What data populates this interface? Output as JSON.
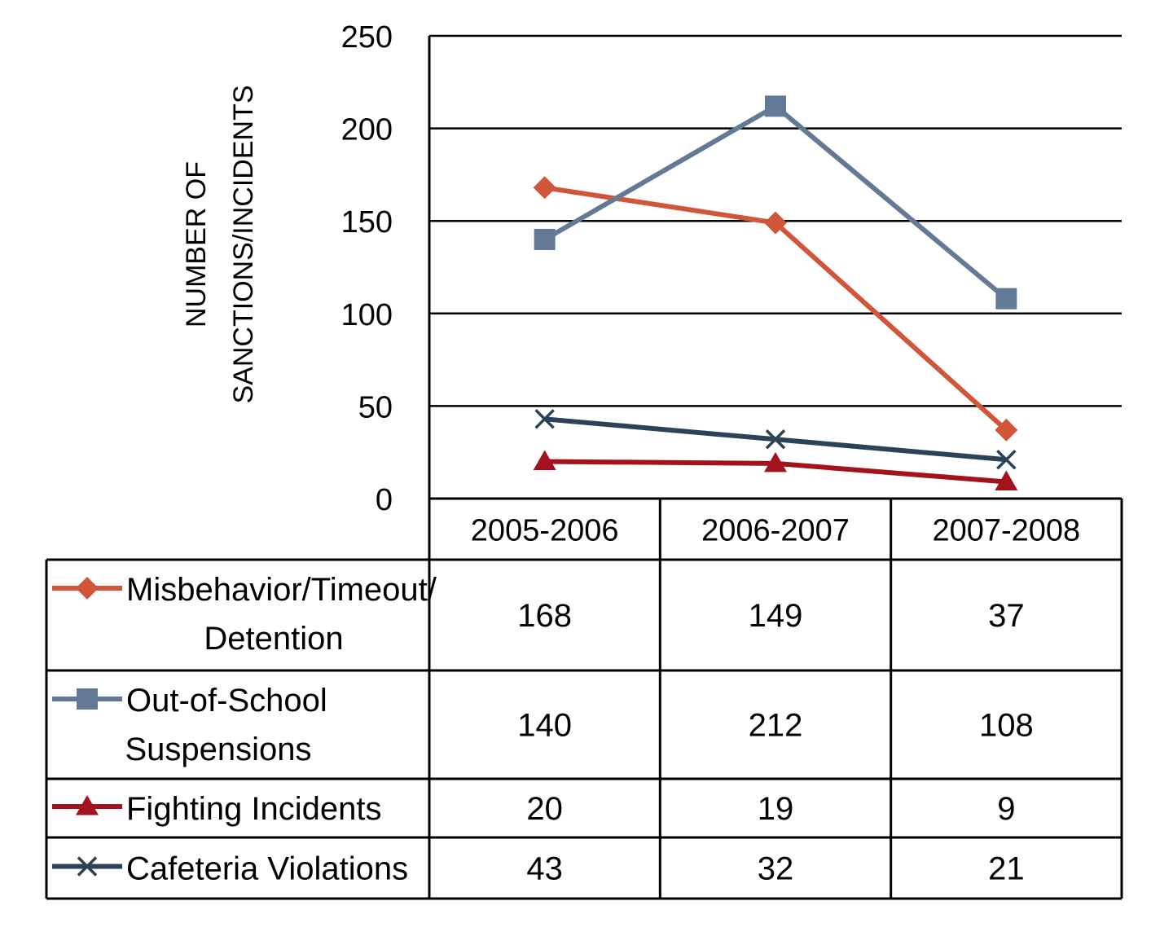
{
  "chart_data": {
    "type": "line",
    "title": "",
    "xlabel": "",
    "ylabel": "NUMBER OF SANCTIONS/INCIDENTS",
    "ylabel_lines": [
      "NUMBER OF",
      "SANCTIONS/INCIDENTS"
    ],
    "ylim": [
      0,
      250
    ],
    "yticks": [
      0,
      50,
      100,
      150,
      200,
      250
    ],
    "ytick_labels": [
      "0",
      "50",
      "100",
      "150",
      "200",
      "250"
    ],
    "grid": true,
    "legend": "data-table",
    "categories": [
      "2005-2006",
      "2006-2007",
      "2007-2008"
    ],
    "series": [
      {
        "name": "Misbehavior/Timeout/ Detention",
        "name_lines": [
          "Misbehavior/Timeout/",
          "Detention"
        ],
        "values": [
          168,
          149,
          37
        ],
        "value_labels": [
          "168",
          "149",
          "37"
        ],
        "color": "#d0553a",
        "marker": "diamond"
      },
      {
        "name": "Out-of-School Suspensions",
        "name_lines": [
          "Out-of-School",
          "Suspensions"
        ],
        "values": [
          140,
          212,
          108
        ],
        "value_labels": [
          "140",
          "212",
          "108"
        ],
        "color": "#627a95",
        "marker": "square"
      },
      {
        "name": "Fighting Incidents",
        "name_lines": [
          "Fighting Incidents"
        ],
        "values": [
          20,
          19,
          9
        ],
        "value_labels": [
          "20",
          "19",
          "9"
        ],
        "color": "#a3131e",
        "marker": "triangle"
      },
      {
        "name": "Cafeteria Violations",
        "name_lines": [
          "Cafeteria Violations"
        ],
        "values": [
          43,
          32,
          21
        ],
        "value_labels": [
          "43",
          "32",
          "21"
        ],
        "color": "#2c4257",
        "marker": "x"
      }
    ]
  }
}
